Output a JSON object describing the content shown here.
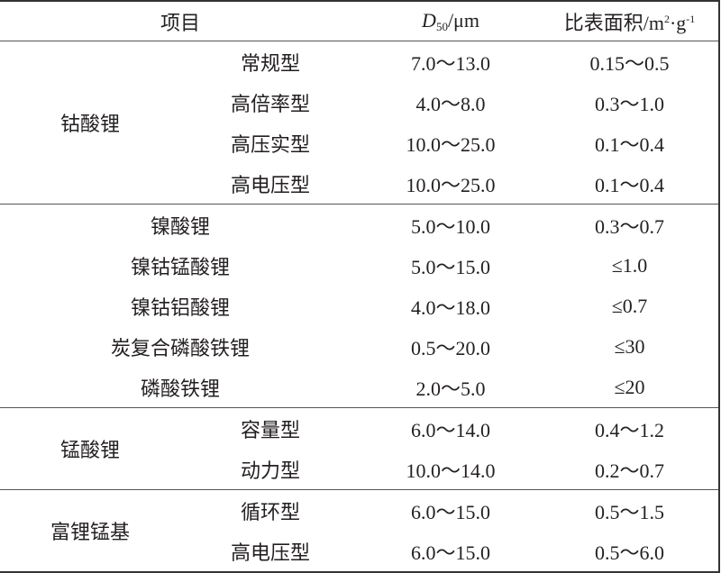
{
  "header": {
    "item": "项目",
    "d50_symbol": "D",
    "d50_sub": "50",
    "d50_unit": "/μm",
    "area_label": "比表面积/m",
    "area_sup1": "2",
    "area_mid": "·g",
    "area_sup2": "-1"
  },
  "groups": [
    {
      "name": "钴酸锂",
      "rows": [
        {
          "type": "常规型",
          "d50": "7.0～13.0",
          "area": "0.15～0.5"
        },
        {
          "type": "高倍率型",
          "d50": "4.0～8.0",
          "area": "0.3～1.0"
        },
        {
          "type": "高压实型",
          "d50": "10.0～25.0",
          "area": "0.1～0.4"
        },
        {
          "type": "高电压型",
          "d50": "10.0～25.0",
          "area": "0.1～0.4"
        }
      ]
    },
    {
      "name": "",
      "rows": [
        {
          "type": "镍酸锂",
          "d50": "5.0～10.0",
          "area": "0.3～0.7"
        },
        {
          "type": "镍钴锰酸锂",
          "d50": "5.0～15.0",
          "area": "≤1.0"
        },
        {
          "type": "镍钴铝酸锂",
          "d50": "4.0～18.0",
          "area": "≤0.7"
        },
        {
          "type": "炭复合磷酸铁锂",
          "d50": "0.5～20.0",
          "area": "≤30"
        },
        {
          "type": "磷酸铁锂",
          "d50": "2.0～5.0",
          "area": "≤20"
        }
      ]
    },
    {
      "name": "锰酸锂",
      "rows": [
        {
          "type": "容量型",
          "d50": "6.0～14.0",
          "area": "0.4～1.2"
        },
        {
          "type": "动力型",
          "d50": "10.0～14.0",
          "area": "0.2～0.7"
        }
      ]
    },
    {
      "name": "富锂锰基",
      "rows": [
        {
          "type": "循环型",
          "d50": "6.0～15.0",
          "area": "0.5～1.5"
        },
        {
          "type": "高电压型",
          "d50": "6.0～15.0",
          "area": "0.5～6.0"
        }
      ]
    }
  ]
}
